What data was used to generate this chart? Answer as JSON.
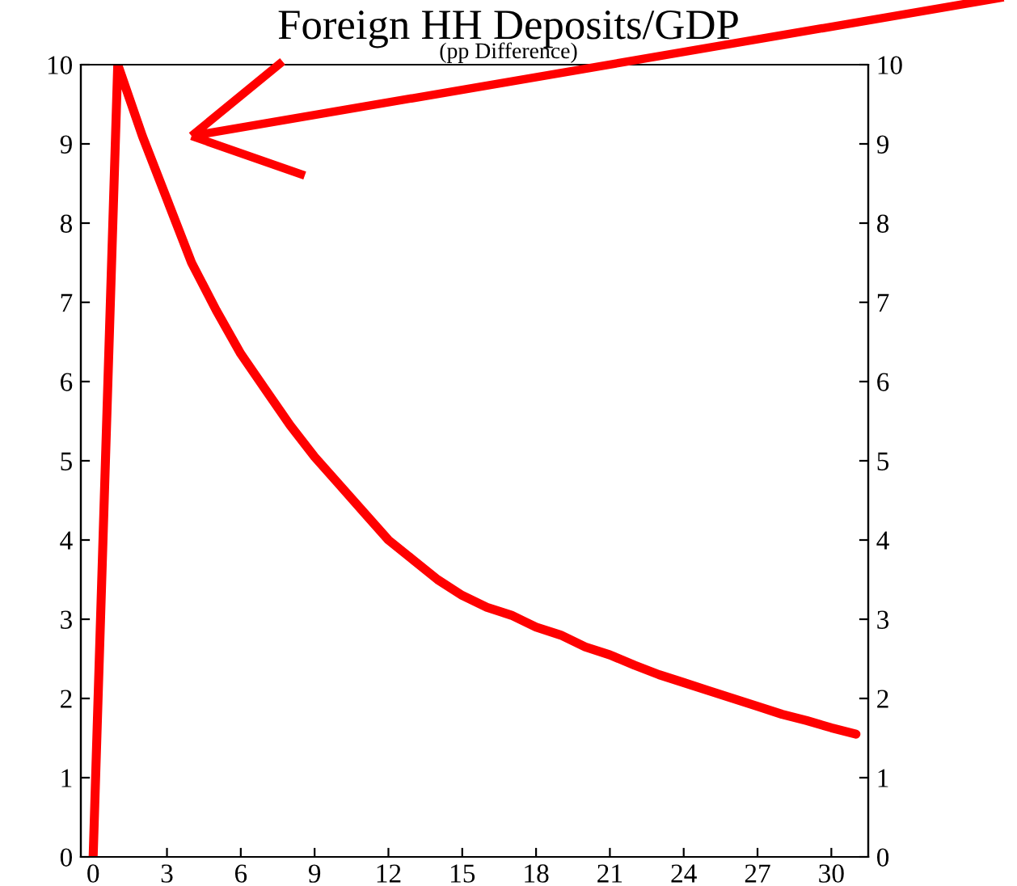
{
  "chart_data": {
    "type": "line",
    "title": "Foreign HH Deposits/GDP",
    "subtitle": "(pp Difference)",
    "x": [
      0,
      1,
      2,
      3,
      4,
      5,
      6,
      7,
      8,
      9,
      10,
      11,
      12,
      13,
      14,
      15,
      16,
      17,
      18,
      19,
      20,
      21,
      22,
      23,
      24,
      25,
      26,
      27,
      28,
      29,
      30,
      31
    ],
    "series": [
      {
        "color": "#ff0000",
        "values": [
          0,
          10,
          9.1,
          8.3,
          7.5,
          6.9,
          6.35,
          5.9,
          5.45,
          5.05,
          4.7,
          4.35,
          4.0,
          3.75,
          3.5,
          3.3,
          3.15,
          3.05,
          2.9,
          2.8,
          2.65,
          2.55,
          2.42,
          2.3,
          2.2,
          2.1,
          2.0,
          1.9,
          1.8,
          1.72,
          1.63,
          1.55
        ]
      }
    ],
    "xlim": [
      -0.5,
      31.5
    ],
    "ylim": [
      0,
      10
    ],
    "y2lim": [
      0,
      10
    ],
    "xticks": [
      0,
      3,
      6,
      9,
      12,
      15,
      18,
      21,
      24,
      27,
      30
    ],
    "yticks": [
      0,
      1,
      2,
      3,
      4,
      5,
      6,
      7,
      8,
      9,
      10
    ],
    "y2ticks": [
      0,
      1,
      2,
      3,
      4,
      5,
      6,
      7,
      8,
      9,
      10
    ],
    "grid": false,
    "legend": false,
    "marker": "none",
    "line_style": "solid"
  }
}
